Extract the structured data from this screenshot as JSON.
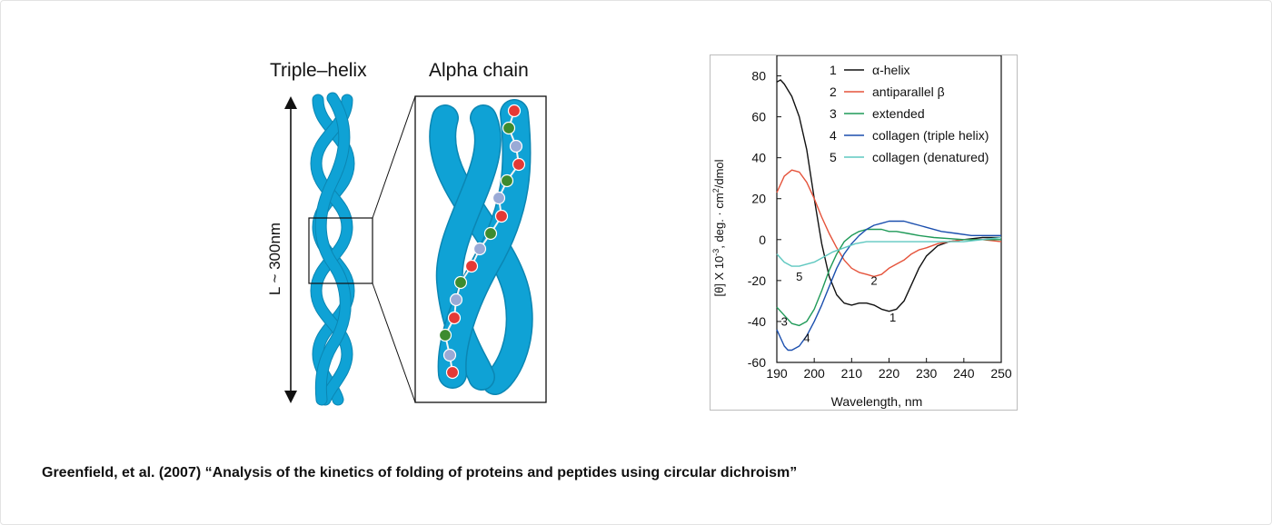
{
  "illustration": {
    "triple_helix_title": "Triple–helix",
    "alpha_chain_title": "Alpha chain",
    "length_label": "L ~ 300nm",
    "colors": {
      "strand": "#0fa2d5",
      "residue_red": "#e53935",
      "residue_green": "#3d8b2f",
      "residue_lavender": "#9aaad6"
    }
  },
  "chart_data": {
    "type": "line",
    "xlabel": "Wavelength, nm",
    "ylabel": "[θ] X 10-3, deg. · cm2/dmol",
    "xlim": [
      190,
      250
    ],
    "ylim": [
      -60,
      90
    ],
    "x_ticks": [
      190,
      200,
      210,
      220,
      230,
      240,
      250
    ],
    "y_ticks": [
      -60,
      -40,
      -20,
      0,
      20,
      40,
      60,
      80
    ],
    "grid": false,
    "legend": "top-right",
    "series": [
      {
        "id": 1,
        "name": "α-helix",
        "color": "#111111",
        "label": "1",
        "label_at": [
          221,
          -40
        ],
        "points": [
          [
            190,
            77
          ],
          [
            191,
            78
          ],
          [
            192,
            76
          ],
          [
            194,
            70
          ],
          [
            196,
            60
          ],
          [
            198,
            44
          ],
          [
            200,
            20
          ],
          [
            202,
            -2
          ],
          [
            204,
            -18
          ],
          [
            206,
            -27
          ],
          [
            208,
            -31
          ],
          [
            210,
            -32
          ],
          [
            212,
            -31
          ],
          [
            214,
            -31
          ],
          [
            216,
            -32
          ],
          [
            218,
            -34
          ],
          [
            220,
            -35
          ],
          [
            222,
            -34
          ],
          [
            224,
            -30
          ],
          [
            226,
            -22
          ],
          [
            228,
            -14
          ],
          [
            230,
            -8
          ],
          [
            233,
            -3
          ],
          [
            236,
            -1
          ],
          [
            240,
            0
          ],
          [
            245,
            1
          ],
          [
            250,
            1
          ]
        ]
      },
      {
        "id": 2,
        "name": "antiparallel β",
        "color": "#e5533b",
        "label": "2",
        "label_at": [
          216,
          -22
        ],
        "points": [
          [
            190,
            23
          ],
          [
            192,
            31
          ],
          [
            194,
            34
          ],
          [
            196,
            33
          ],
          [
            198,
            28
          ],
          [
            200,
            20
          ],
          [
            202,
            11
          ],
          [
            204,
            3
          ],
          [
            206,
            -4
          ],
          [
            208,
            -10
          ],
          [
            210,
            -14
          ],
          [
            212,
            -16
          ],
          [
            214,
            -17
          ],
          [
            216,
            -18
          ],
          [
            218,
            -17
          ],
          [
            220,
            -14
          ],
          [
            222,
            -12
          ],
          [
            224,
            -10
          ],
          [
            226,
            -7
          ],
          [
            228,
            -5
          ],
          [
            230,
            -4
          ],
          [
            233,
            -2
          ],
          [
            236,
            -1
          ],
          [
            240,
            0
          ],
          [
            245,
            0
          ],
          [
            250,
            -1
          ]
        ]
      },
      {
        "id": 3,
        "name": "extended",
        "color": "#1f9a58",
        "label": "3",
        "label_at": [
          192,
          -42
        ],
        "points": [
          [
            190,
            -33
          ],
          [
            192,
            -37
          ],
          [
            194,
            -41
          ],
          [
            196,
            -42
          ],
          [
            198,
            -40
          ],
          [
            200,
            -34
          ],
          [
            202,
            -25
          ],
          [
            204,
            -15
          ],
          [
            206,
            -7
          ],
          [
            208,
            -1
          ],
          [
            210,
            2
          ],
          [
            212,
            4
          ],
          [
            214,
            5
          ],
          [
            216,
            5
          ],
          [
            218,
            5
          ],
          [
            220,
            4
          ],
          [
            222,
            4
          ],
          [
            225,
            3
          ],
          [
            228,
            2
          ],
          [
            232,
            1
          ],
          [
            240,
            0
          ],
          [
            250,
            0
          ]
        ]
      },
      {
        "id": 4,
        "name": "collagen (triple helix)",
        "color": "#1b4fae",
        "label": "4",
        "label_at": [
          198,
          -50
        ],
        "points": [
          [
            190,
            -44
          ],
          [
            191,
            -48
          ],
          [
            192,
            -52
          ],
          [
            193,
            -54
          ],
          [
            194,
            -54
          ],
          [
            196,
            -52
          ],
          [
            198,
            -47
          ],
          [
            200,
            -40
          ],
          [
            202,
            -32
          ],
          [
            204,
            -23
          ],
          [
            206,
            -14
          ],
          [
            208,
            -7
          ],
          [
            210,
            -2
          ],
          [
            212,
            2
          ],
          [
            214,
            5
          ],
          [
            216,
            7
          ],
          [
            218,
            8
          ],
          [
            220,
            9
          ],
          [
            222,
            9
          ],
          [
            224,
            9
          ],
          [
            226,
            8
          ],
          [
            228,
            7
          ],
          [
            230,
            6
          ],
          [
            234,
            4
          ],
          [
            238,
            3
          ],
          [
            242,
            2
          ],
          [
            246,
            2
          ],
          [
            250,
            2
          ]
        ]
      },
      {
        "id": 5,
        "name": "collagen (denatured)",
        "color": "#5fc8c0",
        "label": "5",
        "label_at": [
          196,
          -20
        ],
        "points": [
          [
            190,
            -7
          ],
          [
            192,
            -11
          ],
          [
            194,
            -13
          ],
          [
            196,
            -13
          ],
          [
            198,
            -12
          ],
          [
            200,
            -11
          ],
          [
            202,
            -9
          ],
          [
            205,
            -6
          ],
          [
            208,
            -4
          ],
          [
            211,
            -2
          ],
          [
            214,
            -1
          ],
          [
            218,
            -1
          ],
          [
            222,
            -1
          ],
          [
            226,
            -1
          ],
          [
            230,
            -1
          ],
          [
            235,
            -1
          ],
          [
            240,
            -1
          ],
          [
            245,
            0
          ],
          [
            250,
            1
          ]
        ]
      }
    ]
  },
  "caption": "Greenfield, et al. (2007) “Analysis of the kinetics of folding of proteins and peptides using circular dichroism”"
}
